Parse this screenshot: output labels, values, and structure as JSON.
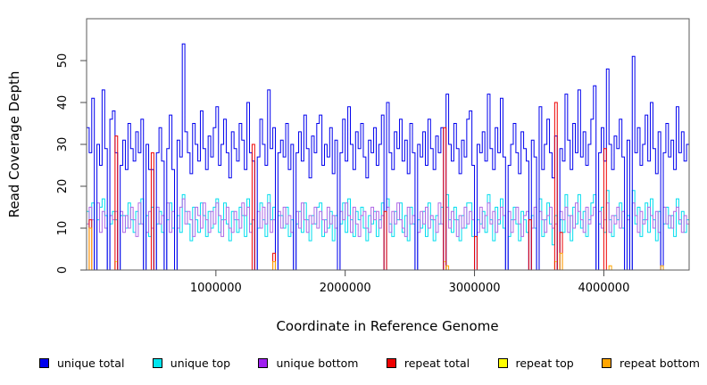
{
  "figure": {
    "background": "#FFFFFF"
  },
  "chart_data": {
    "type": "line",
    "step_mode": "steps",
    "title": "",
    "xlabel": "Coordinate in Reference Genome",
    "ylabel": "Read Coverage Depth",
    "xlim": [
      0,
      4660000
    ],
    "ylim": [
      0,
      60
    ],
    "xticks": [
      1000000,
      2000000,
      3000000,
      4000000
    ],
    "xtick_labels": [
      "1000000",
      "2000000",
      "3000000",
      "4000000"
    ],
    "yticks": [
      0,
      10,
      20,
      30,
      40,
      50
    ],
    "ytick_labels": [
      "0",
      "10",
      "20",
      "30",
      "40",
      "50"
    ],
    "grid": false,
    "box_color": "#5a5a5a",
    "tick_color": "#4a4a4a",
    "x_start": 0,
    "x_step": 20000,
    "legend_position": "bottom",
    "draw_order": [
      "repeat top",
      "unique top",
      "unique bottom",
      "unique total",
      "repeat total",
      "repeat bottom"
    ],
    "series": [
      {
        "name": "unique total",
        "color": "#0000EE",
        "line_color": "#0000EE",
        "values": [
          34,
          28,
          41,
          0,
          30,
          25,
          43,
          29,
          0,
          36,
          38,
          28,
          0,
          25,
          31,
          24,
          35,
          29,
          26,
          33,
          28,
          36,
          0,
          30,
          24,
          24,
          0,
          28,
          34,
          26,
          0,
          29,
          37,
          24,
          0,
          31,
          27,
          54,
          33,
          28,
          23,
          35,
          30,
          26,
          38,
          29,
          24,
          32,
          27,
          34,
          39,
          25,
          30,
          36,
          28,
          22,
          33,
          29,
          26,
          35,
          31,
          24,
          40,
          28,
          26,
          0,
          27,
          36,
          30,
          25,
          43,
          29,
          34,
          0,
          28,
          31,
          27,
          35,
          24,
          30,
          0,
          28,
          33,
          26,
          37,
          29,
          22,
          32,
          28,
          35,
          37,
          25,
          30,
          27,
          34,
          23,
          31,
          0,
          28,
          36,
          26,
          39,
          30,
          24,
          33,
          29,
          35,
          27,
          22,
          31,
          28,
          34,
          25,
          30,
          37,
          0,
          40,
          28,
          24,
          33,
          29,
          36,
          26,
          31,
          23,
          35,
          28,
          0,
          30,
          27,
          33,
          25,
          36,
          29,
          24,
          32,
          28,
          34,
          0,
          42,
          30,
          26,
          35,
          29,
          23,
          31,
          27,
          36,
          38,
          25,
          0,
          30,
          28,
          33,
          26,
          42,
          29,
          24,
          34,
          28,
          41,
          27,
          0,
          25,
          30,
          35,
          28,
          23,
          33,
          29,
          26,
          0,
          31,
          27,
          0,
          39,
          24,
          30,
          36,
          28,
          22,
          32,
          0,
          29,
          26,
          42,
          31,
          24,
          35,
          28,
          43,
          27,
          33,
          25,
          30,
          36,
          44,
          0,
          28,
          34,
          26,
          48,
          30,
          24,
          32,
          29,
          36,
          27,
          0,
          31,
          0,
          51,
          28,
          34,
          25,
          30,
          37,
          26,
          40,
          29,
          23,
          33,
          0,
          28,
          35,
          27,
          31,
          24,
          39,
          28,
          33,
          26,
          30
        ]
      },
      {
        "name": "unique top",
        "color": "#00E5EE",
        "line_color": "#00DDee",
        "values": [
          14,
          10,
          16,
          0,
          12,
          15,
          17,
          13,
          0,
          11,
          14,
          12,
          0,
          13,
          13,
          10,
          16,
          12,
          9,
          14,
          11,
          17,
          0,
          13,
          8,
          15,
          0,
          11,
          14,
          9,
          0,
          12,
          16,
          10,
          0,
          13,
          9,
          18,
          14,
          11,
          7,
          15,
          12,
          9,
          16,
          13,
          8,
          14,
          10,
          15,
          17,
          9,
          12,
          16,
          11,
          7,
          14,
          12,
          9,
          15,
          13,
          8,
          17,
          11,
          12,
          0,
          10,
          16,
          12,
          8,
          18,
          12,
          15,
          0,
          13,
          13,
          10,
          15,
          8,
          12,
          0,
          11,
          14,
          9,
          16,
          12,
          7,
          13,
          11,
          15,
          16,
          8,
          12,
          10,
          14,
          7,
          13,
          0,
          11,
          16,
          9,
          17,
          12,
          8,
          14,
          12,
          15,
          10,
          7,
          13,
          11,
          14,
          8,
          12,
          16,
          0,
          17,
          11,
          8,
          14,
          12,
          16,
          9,
          13,
          7,
          15,
          11,
          0,
          12,
          10,
          14,
          8,
          16,
          12,
          7,
          13,
          11,
          15,
          0,
          18,
          12,
          9,
          15,
          12,
          7,
          13,
          10,
          16,
          16,
          8,
          0,
          12,
          11,
          14,
          9,
          18,
          12,
          7,
          15,
          11,
          17,
          10,
          0,
          8,
          12,
          15,
          11,
          7,
          14,
          12,
          9,
          0,
          13,
          10,
          0,
          17,
          8,
          12,
          16,
          11,
          6,
          13,
          0,
          12,
          9,
          18,
          13,
          7,
          15,
          11,
          18,
          10,
          14,
          8,
          12,
          16,
          18,
          0,
          11,
          15,
          9,
          19,
          12,
          8,
          13,
          12,
          16,
          10,
          0,
          13,
          0,
          19,
          11,
          15,
          8,
          12,
          16,
          9,
          17,
          12,
          7,
          14,
          0,
          11,
          15,
          10,
          13,
          8,
          17,
          11,
          14,
          9,
          12
        ]
      },
      {
        "name": "unique bottom",
        "color": "#A020F0",
        "line_color": "#B06AE6",
        "values": [
          11,
          15,
          12,
          0,
          16,
          9,
          14,
          10,
          0,
          13,
          12,
          14,
          0,
          14,
          9,
          13,
          10,
          15,
          12,
          8,
          16,
          11,
          0,
          9,
          14,
          10,
          0,
          15,
          11,
          13,
          0,
          16,
          9,
          14,
          0,
          10,
          15,
          17,
          11,
          14,
          12,
          8,
          15,
          13,
          10,
          16,
          12,
          9,
          14,
          11,
          16,
          13,
          8,
          12,
          15,
          10,
          9,
          14,
          12,
          10,
          16,
          13,
          15,
          9,
          12,
          0,
          14,
          10,
          15,
          11,
          16,
          9,
          12,
          0,
          14,
          10,
          15,
          11,
          13,
          9,
          0,
          14,
          10,
          16,
          12,
          9,
          13,
          11,
          15,
          10,
          14,
          12,
          9,
          15,
          11,
          13,
          10,
          0,
          14,
          12,
          16,
          13,
          9,
          15,
          11,
          8,
          13,
          14,
          10,
          9,
          15,
          12,
          14,
          10,
          13,
          0,
          15,
          9,
          14,
          11,
          16,
          12,
          10,
          8,
          15,
          11,
          13,
          0,
          9,
          14,
          11,
          15,
          10,
          13,
          12,
          9,
          16,
          11,
          0,
          15,
          10,
          14,
          12,
          8,
          13,
          10,
          15,
          11,
          14,
          12,
          0,
          9,
          15,
          10,
          13,
          16,
          11,
          14,
          9,
          12,
          15,
          13,
          0,
          14,
          9,
          12,
          15,
          11,
          8,
          13,
          14,
          0,
          10,
          15,
          0,
          14,
          12,
          9,
          13,
          15,
          10,
          11,
          0,
          14,
          12,
          15,
          9,
          13,
          10,
          16,
          14,
          12,
          9,
          15,
          11,
          13,
          15,
          0,
          14,
          10,
          12,
          16,
          9,
          13,
          11,
          15,
          10,
          14,
          0,
          12,
          0,
          16,
          13,
          9,
          14,
          11,
          12,
          15,
          13,
          10,
          14,
          9,
          0,
          15,
          11,
          13,
          10,
          14,
          15,
          12,
          9,
          13,
          11
        ]
      },
      {
        "name": "repeat total",
        "color": "#EE0000",
        "line_color": "#EE0000",
        "values_sparse": {
          "length": 233,
          "default": 0,
          "overrides": {
            "1": 12,
            "11": 32,
            "25": 28,
            "64": 30,
            "72": 4,
            "115": 14,
            "138": 34,
            "150": 8,
            "171": 12,
            "181": 40,
            "183": 9,
            "200": 29
          }
        }
      },
      {
        "name": "repeat top",
        "color": "#FFFF00",
        "line_color": "#FFFF00",
        "values_sparse": {
          "length": 233,
          "default": 0,
          "overrides": {
            "11": 2,
            "138": 2,
            "181": 2
          }
        }
      },
      {
        "name": "repeat bottom",
        "color": "#FFA500",
        "line_color": "#FFA500",
        "values_sparse": {
          "length": 233,
          "default": 0,
          "overrides": {
            "1": 10,
            "72": 2,
            "139": 1,
            "183": 4,
            "202": 1,
            "222": 1
          }
        }
      }
    ]
  },
  "legend": {
    "items": [
      {
        "label": "unique total",
        "color": "#0000EE"
      },
      {
        "label": "unique top",
        "color": "#00E5EE"
      },
      {
        "label": "unique bottom",
        "color": "#A020F0"
      },
      {
        "label": "repeat total",
        "color": "#EE0000"
      },
      {
        "label": "repeat top",
        "color": "#FFFF00"
      },
      {
        "label": "repeat bottom",
        "color": "#FFA500"
      }
    ]
  }
}
